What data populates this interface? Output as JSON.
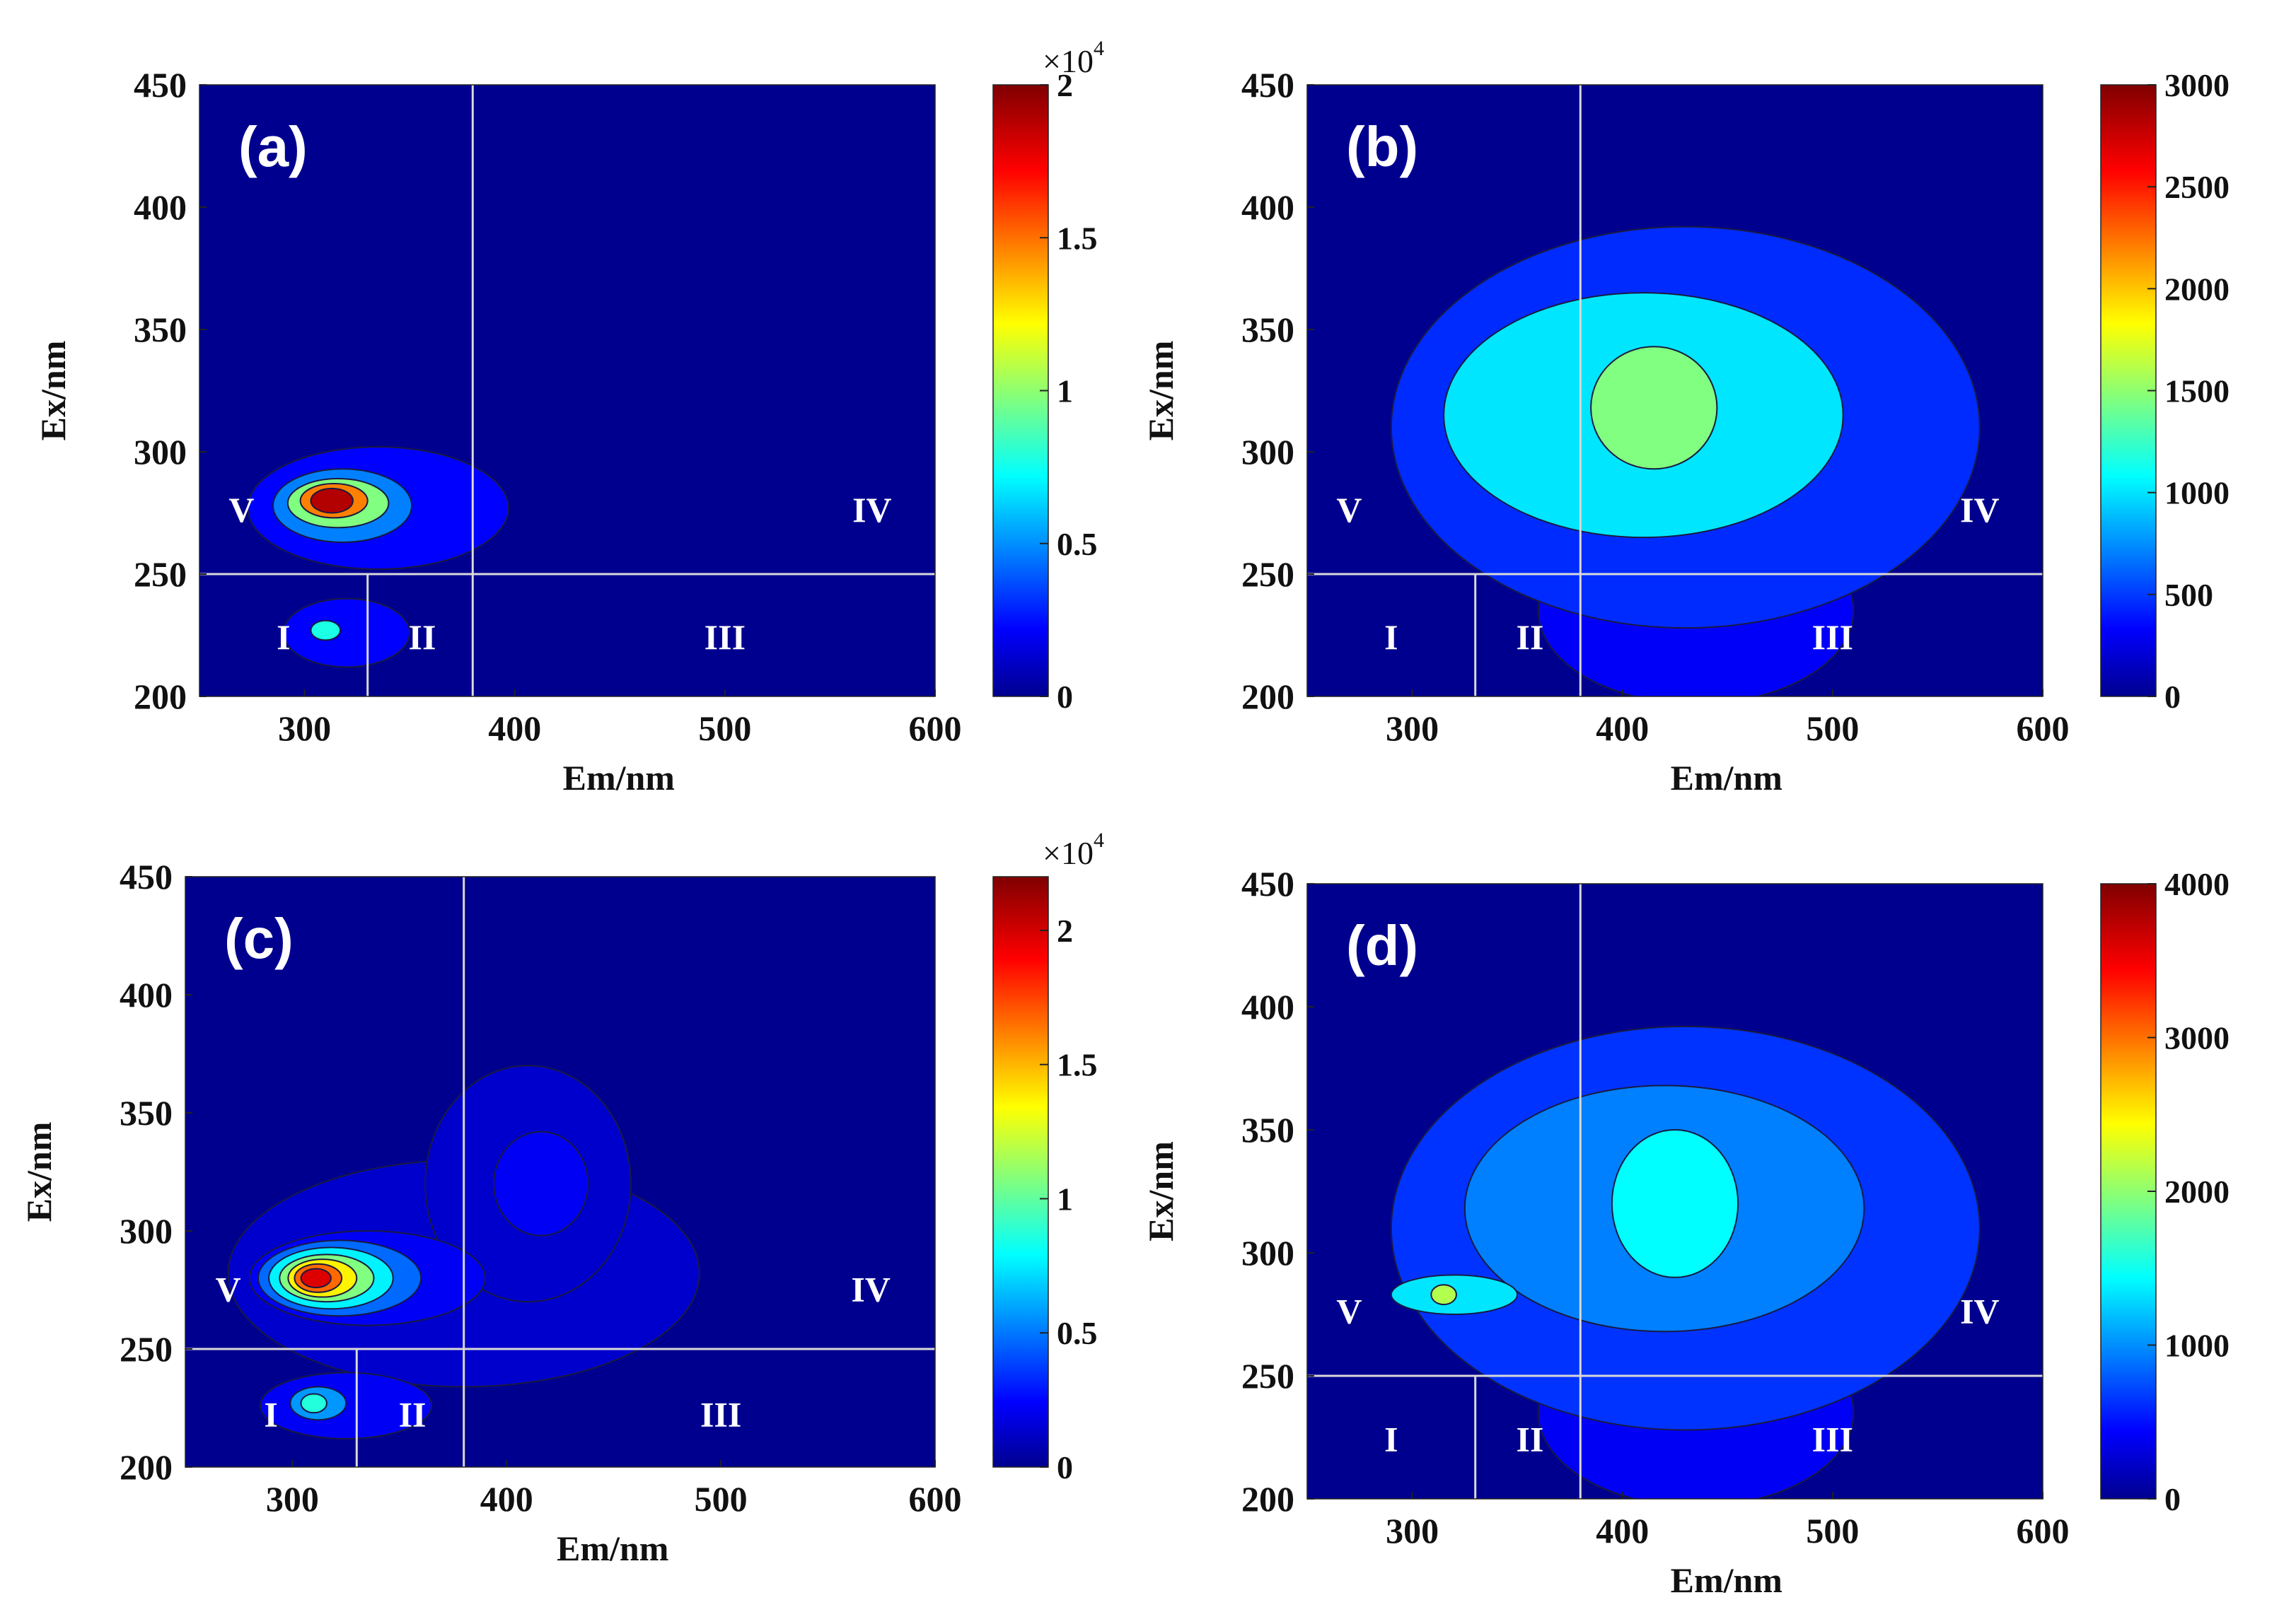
{
  "colors": {
    "background": "#00008f",
    "divider": "#d9d9d9",
    "region_text": "#ffffff",
    "contour_line": "#1a1a40",
    "jet": [
      "#00008f",
      "#0000ff",
      "#0080ff",
      "#00ffff",
      "#80ff80",
      "#ffff00",
      "#ff8000",
      "#ff0000",
      "#800000"
    ]
  },
  "chart_data": [
    {
      "type": "heatmap",
      "panel_label": "(a)",
      "xlabel": "Em/nm",
      "ylabel": "Ex/nm",
      "xlim": [
        250,
        600
      ],
      "ylim": [
        200,
        450
      ],
      "x_ticks": [
        "300",
        "400",
        "500",
        "600"
      ],
      "y_ticks": [
        "200",
        "250",
        "300",
        "350",
        "400",
        "450"
      ],
      "colorbar": {
        "min": 0,
        "max": 20000,
        "ticks": [
          "0",
          "0.5",
          "1",
          "1.5",
          "2"
        ],
        "tick_values": [
          0,
          5000,
          10000,
          15000,
          20000
        ],
        "multiplier_base": "×10",
        "multiplier_exp": "4"
      },
      "dividers": {
        "ex": 250,
        "em_lower": 330,
        "em_upper": 380
      },
      "regions": [
        {
          "label": "I",
          "em": 290,
          "ex": 224
        },
        {
          "label": "II",
          "em": 356,
          "ex": 224
        },
        {
          "label": "III",
          "em": 500,
          "ex": 224
        },
        {
          "label": "IV",
          "em": 570,
          "ex": 276
        },
        {
          "label": "V",
          "em": 270,
          "ex": 276
        }
      ],
      "contours": [
        {
          "value": 2500,
          "center": [
            335,
            277
          ],
          "radii": [
            62,
            25
          ]
        },
        {
          "value": 5000,
          "center": [
            318,
            278
          ],
          "radii": [
            33,
            15
          ]
        },
        {
          "value": 10000,
          "center": [
            316,
            279
          ],
          "radii": [
            24,
            10
          ]
        },
        {
          "value": 15000,
          "center": [
            314,
            280
          ],
          "radii": [
            16,
            7
          ]
        },
        {
          "value": 19000,
          "center": [
            313,
            280
          ],
          "radii": [
            10,
            5
          ]
        },
        {
          "value": 2500,
          "center": [
            320,
            226
          ],
          "radii": [
            30,
            14
          ]
        },
        {
          "value": 8000,
          "center": [
            310,
            227
          ],
          "radii": [
            7,
            4
          ]
        }
      ]
    },
    {
      "type": "heatmap",
      "panel_label": "(b)",
      "xlabel": "Em/nm",
      "ylabel": "Ex/nm",
      "xlim": [
        250,
        600
      ],
      "ylim": [
        200,
        450
      ],
      "x_ticks": [
        "300",
        "400",
        "500",
        "600"
      ],
      "y_ticks": [
        "200",
        "250",
        "300",
        "350",
        "400",
        "450"
      ],
      "colorbar": {
        "min": 0,
        "max": 3000,
        "ticks": [
          "0",
          "500",
          "1000",
          "1500",
          "2000",
          "2500",
          "3000"
        ],
        "tick_values": [
          0,
          500,
          1000,
          1500,
          2000,
          2500,
          3000
        ],
        "multiplier_base": "",
        "multiplier_exp": ""
      },
      "dividers": {
        "ex": 250,
        "em_lower": 330,
        "em_upper": 380
      },
      "regions": [
        {
          "label": "I",
          "em": 290,
          "ex": 224
        },
        {
          "label": "II",
          "em": 356,
          "ex": 224
        },
        {
          "label": "III",
          "em": 500,
          "ex": 224
        },
        {
          "label": "IV",
          "em": 570,
          "ex": 276
        },
        {
          "label": "V",
          "em": 270,
          "ex": 276
        }
      ],
      "contours": [
        {
          "value": 350,
          "center": [
            435,
            235
          ],
          "radii": [
            75,
            38
          ]
        },
        {
          "value": 500,
          "center": [
            430,
            310
          ],
          "radii": [
            140,
            82
          ]
        },
        {
          "value": 1050,
          "center": [
            410,
            315
          ],
          "radii": [
            95,
            50
          ]
        },
        {
          "value": 1500,
          "center": [
            415,
            318
          ],
          "radii": [
            30,
            25
          ]
        }
      ]
    },
    {
      "type": "heatmap",
      "panel_label": "(c)",
      "xlabel": "Em/nm",
      "ylabel": "Ex/nm",
      "xlim": [
        250,
        600
      ],
      "ylim": [
        200,
        450
      ],
      "x_ticks": [
        "300",
        "400",
        "500",
        "600"
      ],
      "y_ticks": [
        "200",
        "250",
        "300",
        "350",
        "400",
        "450"
      ],
      "colorbar": {
        "min": 0,
        "max": 22000,
        "ticks": [
          "0",
          "0.5",
          "1",
          "1.5",
          "2"
        ],
        "tick_values": [
          0,
          5000,
          10000,
          15000,
          20000
        ],
        "multiplier_base": "×10",
        "multiplier_exp": "4"
      },
      "dividers": {
        "ex": 250,
        "em_lower": 330,
        "em_upper": 380
      },
      "regions": [
        {
          "label": "I",
          "em": 290,
          "ex": 222
        },
        {
          "label": "II",
          "em": 356,
          "ex": 222
        },
        {
          "label": "III",
          "em": 500,
          "ex": 222
        },
        {
          "label": "IV",
          "em": 570,
          "ex": 275
        },
        {
          "label": "V",
          "em": 270,
          "ex": 275
        }
      ],
      "contours": [
        {
          "value": 1500,
          "center": [
            380,
            282
          ],
          "radii": [
            110,
            48
          ]
        },
        {
          "value": 1500,
          "center": [
            410,
            320
          ],
          "radii": [
            48,
            50
          ]
        },
        {
          "value": 2500,
          "center": [
            416,
            320
          ],
          "radii": [
            22,
            22
          ]
        },
        {
          "value": 2500,
          "center": [
            335,
            280
          ],
          "radii": [
            55,
            20
          ]
        },
        {
          "value": 5000,
          "center": [
            322,
            280
          ],
          "radii": [
            38,
            16
          ]
        },
        {
          "value": 8000,
          "center": [
            318,
            280
          ],
          "radii": [
            29,
            13
          ]
        },
        {
          "value": 11000,
          "center": [
            316,
            280
          ],
          "radii": [
            22,
            10
          ]
        },
        {
          "value": 14000,
          "center": [
            314,
            280
          ],
          "radii": [
            16,
            8
          ]
        },
        {
          "value": 17000,
          "center": [
            312,
            280
          ],
          "radii": [
            11,
            6
          ]
        },
        {
          "value": 20000,
          "center": [
            311,
            280
          ],
          "radii": [
            7,
            4
          ]
        },
        {
          "value": 2500,
          "center": [
            325,
            226
          ],
          "radii": [
            40,
            14
          ]
        },
        {
          "value": 6000,
          "center": [
            312,
            227
          ],
          "radii": [
            13,
            7
          ]
        },
        {
          "value": 9000,
          "center": [
            310,
            227
          ],
          "radii": [
            6,
            4
          ]
        }
      ]
    },
    {
      "type": "heatmap",
      "panel_label": "(d)",
      "xlabel": "Em/nm",
      "ylabel": "Ex/nm",
      "xlim": [
        250,
        600
      ],
      "ylim": [
        200,
        450
      ],
      "x_ticks": [
        "300",
        "400",
        "500",
        "600"
      ],
      "y_ticks": [
        "200",
        "250",
        "300",
        "350",
        "400",
        "450"
      ],
      "colorbar": {
        "min": 0,
        "max": 4000,
        "ticks": [
          "0",
          "1000",
          "2000",
          "3000",
          "4000"
        ],
        "tick_values": [
          0,
          1000,
          2000,
          3000,
          4000
        ],
        "multiplier_base": "",
        "multiplier_exp": ""
      },
      "dividers": {
        "ex": 250,
        "em_lower": 330,
        "em_upper": 380
      },
      "regions": [
        {
          "label": "I",
          "em": 290,
          "ex": 224
        },
        {
          "label": "II",
          "em": 356,
          "ex": 224
        },
        {
          "label": "III",
          "em": 500,
          "ex": 224
        },
        {
          "label": "IV",
          "em": 570,
          "ex": 276
        },
        {
          "label": "V",
          "em": 270,
          "ex": 276
        }
      ],
      "contours": [
        {
          "value": 450,
          "center": [
            435,
            235
          ],
          "radii": [
            75,
            38
          ]
        },
        {
          "value": 700,
          "center": [
            430,
            310
          ],
          "radii": [
            140,
            82
          ]
        },
        {
          "value": 1000,
          "center": [
            420,
            318
          ],
          "radii": [
            95,
            50
          ]
        },
        {
          "value": 1500,
          "center": [
            425,
            320
          ],
          "radii": [
            30,
            30
          ]
        },
        {
          "value": 1400,
          "center": [
            320,
            283
          ],
          "radii": [
            30,
            8
          ]
        },
        {
          "value": 2200,
          "center": [
            315,
            283
          ],
          "radii": [
            6,
            4
          ]
        }
      ]
    }
  ]
}
